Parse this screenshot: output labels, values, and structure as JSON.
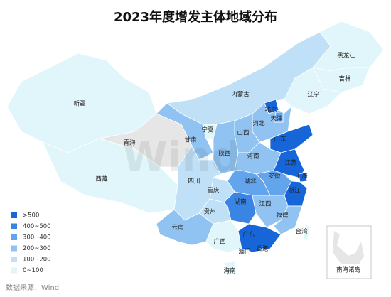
{
  "title": "2023年度增发主体地域分布",
  "watermark": "Wind",
  "source": "数据来源：Wind",
  "inset_label": "南海诸岛",
  "legend": [
    {
      "label": ">500",
      "color": "#1766d9"
    },
    {
      "label": "400~500",
      "color": "#3a84e4"
    },
    {
      "label": "300~400",
      "color": "#62a5ec"
    },
    {
      "label": "200~300",
      "color": "#90c3f1"
    },
    {
      "label": "100~200",
      "color": "#bfe0f6"
    },
    {
      "label": "0~100",
      "color": "#e0f6fa"
    }
  ],
  "regions": [
    {
      "name": "新疆",
      "color": "#e0f6fa"
    },
    {
      "name": "西藏",
      "color": "#e0f6fa"
    },
    {
      "name": "青海",
      "color": "#e6e6e6"
    },
    {
      "name": "甘肃",
      "color": "#90c3f1"
    },
    {
      "name": "内蒙古",
      "color": "#bfe0f6"
    },
    {
      "name": "黑龙江",
      "color": "#e0f6fa"
    },
    {
      "name": "吉林",
      "color": "#e0f6fa"
    },
    {
      "name": "辽宁",
      "color": "#e0f6fa"
    },
    {
      "name": "河北",
      "color": "#90c3f1"
    },
    {
      "name": "北京",
      "color": "#1766d9"
    },
    {
      "name": "天津",
      "color": "#62a5ec"
    },
    {
      "name": "山西",
      "color": "#90c3f1"
    },
    {
      "name": "宁夏",
      "color": "#e0f6fa"
    },
    {
      "name": "陕西",
      "color": "#90c3f1"
    },
    {
      "name": "山东",
      "color": "#1766d9"
    },
    {
      "name": "河南",
      "color": "#90c3f1"
    },
    {
      "name": "江苏",
      "color": "#1766d9"
    },
    {
      "name": "安徽",
      "color": "#62a5ec"
    },
    {
      "name": "上海",
      "color": "#1766d9"
    },
    {
      "name": "湖北",
      "color": "#62a5ec"
    },
    {
      "name": "重庆",
      "color": "#bfe0f6"
    },
    {
      "name": "四川",
      "color": "#bfe0f6"
    },
    {
      "name": "浙江",
      "color": "#1766d9"
    },
    {
      "name": "湖南",
      "color": "#3a84e4"
    },
    {
      "name": "江西",
      "color": "#90c3f1"
    },
    {
      "name": "福建",
      "color": "#90c3f1"
    },
    {
      "name": "贵州",
      "color": "#bfe0f6"
    },
    {
      "name": "云南",
      "color": "#90c3f1"
    },
    {
      "name": "广西",
      "color": "#e0f6fa"
    },
    {
      "name": "广东",
      "color": "#1766d9"
    },
    {
      "name": "海南",
      "color": "#e0f6fa"
    },
    {
      "name": "台湾",
      "color": "#e0f6fa"
    },
    {
      "name": "香港",
      "color": "#e0f6fa"
    },
    {
      "name": "澳门",
      "color": "#e0f6fa"
    }
  ]
}
